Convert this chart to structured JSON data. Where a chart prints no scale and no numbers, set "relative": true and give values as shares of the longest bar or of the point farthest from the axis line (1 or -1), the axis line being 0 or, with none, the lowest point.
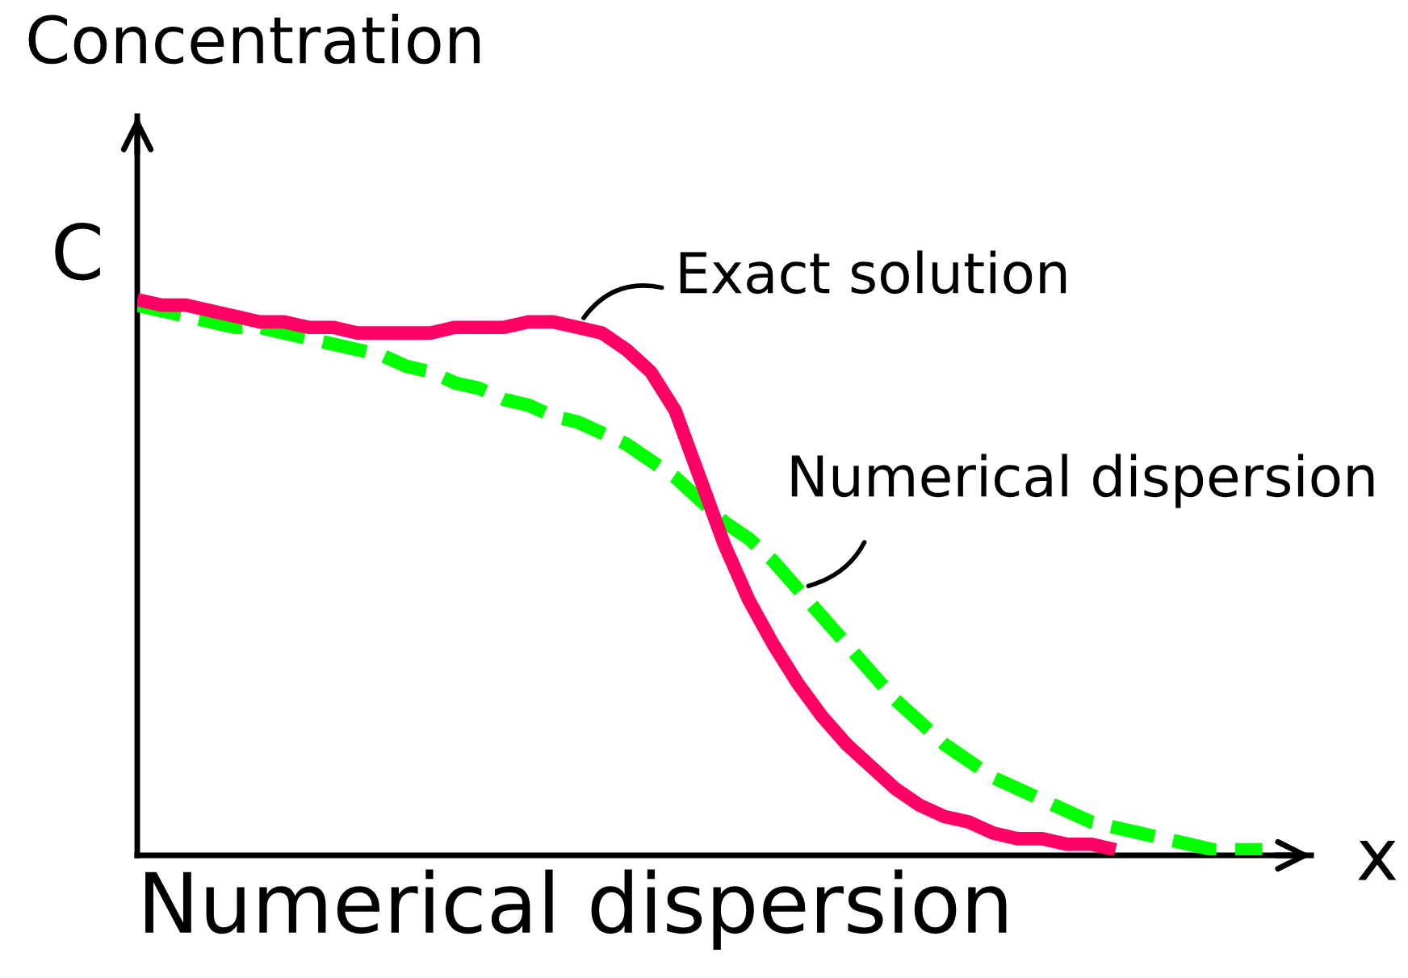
{
  "chart_data": {
    "type": "line",
    "relative": true,
    "title": "Numerical dispersion",
    "xlabel": "x",
    "ylabel": "Concentration",
    "annotations": [
      "C"
    ],
    "categories": [
      null,
      null,
      null,
      null,
      null,
      null,
      null,
      null,
      null,
      null,
      null,
      null,
      null,
      null,
      null,
      null,
      null,
      null,
      null,
      null,
      null,
      null,
      null,
      null,
      null,
      null,
      null,
      null,
      null,
      null,
      null,
      null,
      null,
      null,
      null,
      null,
      null,
      null,
      null,
      null,
      null,
      null,
      null,
      null,
      null,
      null,
      null,
      null,
      null
    ],
    "series": [
      {
        "name": "Exact solution",
        "color": "#ff0066",
        "line_style": "solid",
        "values": [
          1.0,
          0.99,
          0.99,
          0.98,
          0.97,
          0.96,
          0.96,
          0.95,
          0.95,
          0.94,
          0.94,
          0.94,
          0.94,
          0.95,
          0.95,
          0.95,
          0.96,
          0.96,
          0.95,
          0.94,
          0.91,
          0.87,
          0.8,
          0.68,
          0.56,
          0.46,
          0.38,
          0.31,
          0.25,
          0.2,
          0.16,
          0.12,
          0.09,
          0.07,
          0.06,
          0.04,
          0.03,
          0.03,
          0.02,
          0.02,
          0.01,
          null,
          null,
          null,
          null,
          null,
          null,
          null,
          null
        ]
      },
      {
        "name": "Numerical dispersion",
        "color": "#00ff00",
        "line_style": "dashed",
        "values": [
          0.99,
          0.98,
          0.97,
          0.96,
          0.95,
          0.95,
          0.94,
          0.93,
          0.92,
          0.91,
          0.9,
          0.88,
          0.87,
          0.85,
          0.84,
          0.82,
          0.81,
          0.79,
          0.78,
          0.76,
          0.74,
          0.71,
          0.68,
          0.64,
          0.6,
          0.57,
          0.53,
          0.48,
          0.43,
          0.38,
          0.33,
          0.28,
          0.24,
          0.2,
          0.17,
          0.14,
          0.12,
          0.1,
          0.08,
          0.06,
          0.05,
          0.04,
          0.03,
          0.02,
          0.01,
          0.01,
          0.01,
          null,
          null
        ]
      }
    ]
  }
}
